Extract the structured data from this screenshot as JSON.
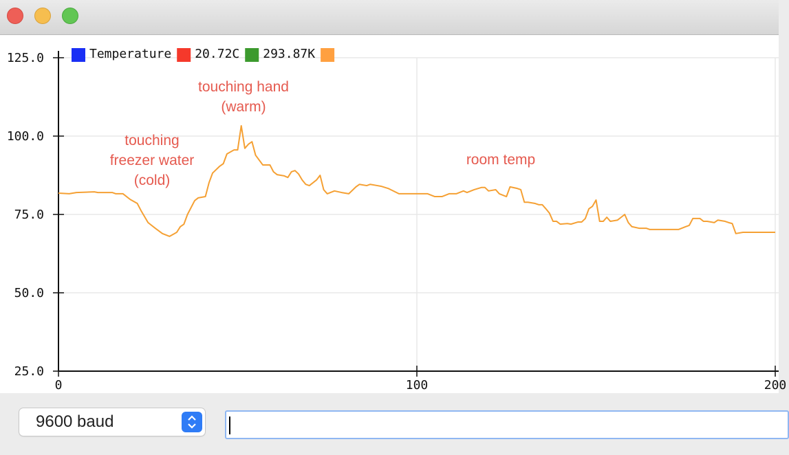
{
  "chart_data": {
    "type": "line",
    "x": [
      0,
      3,
      5,
      10,
      11,
      15,
      16,
      18,
      20,
      22,
      23,
      25,
      27,
      29,
      31,
      33,
      34,
      35,
      36,
      38,
      39,
      41,
      42,
      43,
      45,
      46,
      47,
      49,
      50,
      51,
      52,
      53,
      54,
      55,
      57,
      58,
      59,
      60,
      61,
      63,
      64,
      65,
      66,
      67,
      68,
      69,
      70,
      71,
      72,
      73,
      74,
      75,
      77,
      79,
      81,
      83,
      84,
      86,
      87,
      89,
      90,
      92,
      95,
      99,
      103,
      105,
      107,
      109,
      111,
      113,
      114,
      116,
      118,
      119,
      120,
      122,
      123,
      125,
      126,
      128,
      129,
      130,
      131,
      133,
      134,
      135,
      136,
      137,
      138,
      139,
      140,
      142,
      143,
      145,
      146,
      147,
      148,
      149,
      150,
      151,
      152,
      153,
      154,
      156,
      157,
      158,
      159,
      160,
      162,
      164,
      165,
      168,
      171,
      173,
      175,
      176,
      177,
      179,
      180,
      181,
      183,
      184,
      186,
      187,
      188,
      189,
      191,
      195,
      200
    ],
    "series": [
      {
        "color": "#f5a033",
        "values": [
          81.8,
          81.6,
          82.0,
          82.2,
          82.0,
          82.0,
          81.6,
          81.6,
          79.8,
          78.5,
          76.3,
          72.4,
          70.6,
          68.9,
          68.0,
          69.3,
          71.1,
          71.9,
          75.0,
          79.4,
          80.3,
          80.7,
          85.1,
          88.2,
          90.4,
          91.2,
          94.3,
          95.6,
          95.6,
          103.3,
          96.1,
          97.4,
          98.2,
          93.9,
          90.8,
          90.8,
          90.8,
          88.6,
          87.7,
          87.3,
          86.8,
          88.6,
          89.0,
          87.9,
          86.0,
          84.6,
          84.2,
          85.1,
          86.0,
          87.5,
          82.9,
          81.6,
          82.5,
          82.0,
          81.6,
          83.8,
          84.6,
          84.2,
          84.6,
          84.2,
          84.0,
          83.3,
          81.6,
          81.6,
          81.6,
          80.7,
          80.7,
          81.6,
          81.6,
          82.5,
          82.0,
          82.9,
          83.6,
          83.6,
          82.5,
          82.9,
          81.6,
          80.7,
          83.8,
          83.3,
          82.9,
          78.9,
          78.9,
          78.5,
          78.1,
          78.1,
          76.8,
          75.4,
          72.8,
          72.8,
          71.9,
          72.1,
          71.9,
          72.6,
          72.6,
          73.7,
          76.8,
          77.6,
          79.6,
          72.8,
          72.8,
          74.1,
          72.8,
          73.2,
          74.1,
          75.0,
          72.4,
          71.1,
          70.6,
          70.6,
          70.2,
          70.2,
          70.2,
          70.2,
          71.1,
          71.5,
          73.7,
          73.7,
          72.8,
          72.8,
          72.4,
          73.2,
          72.8,
          72.4,
          72.1,
          68.9,
          69.3,
          69.3,
          69.3
        ]
      }
    ],
    "legend": [
      {
        "name": "Temperature",
        "color": "#1a2ff5"
      },
      {
        "name": "20.72C",
        "color": "#f5392b"
      },
      {
        "name": "293.87K",
        "color": "#3c9a2e"
      },
      {
        "color": "#ffa040"
      }
    ],
    "xlim": [
      0,
      200
    ],
    "xticks": [
      0,
      100,
      200
    ],
    "ylim": [
      25,
      125
    ],
    "yticks": [
      {
        "value": 25,
        "label": "25.0"
      },
      {
        "value": 50,
        "label": "50.0"
      },
      {
        "value": 75,
        "label": "75.0"
      },
      {
        "value": 100,
        "label": "100.0"
      },
      {
        "value": 125,
        "label": "125.0"
      }
    ],
    "grid": true,
    "annotations": [
      {
        "lines": [
          "touching",
          "freezer water",
          "(cold)"
        ]
      },
      {
        "lines": [
          "touching hand",
          "(warm)"
        ]
      },
      {
        "lines": [
          "room temp"
        ]
      }
    ]
  },
  "controls": {
    "baud_select": "9600 baud"
  }
}
